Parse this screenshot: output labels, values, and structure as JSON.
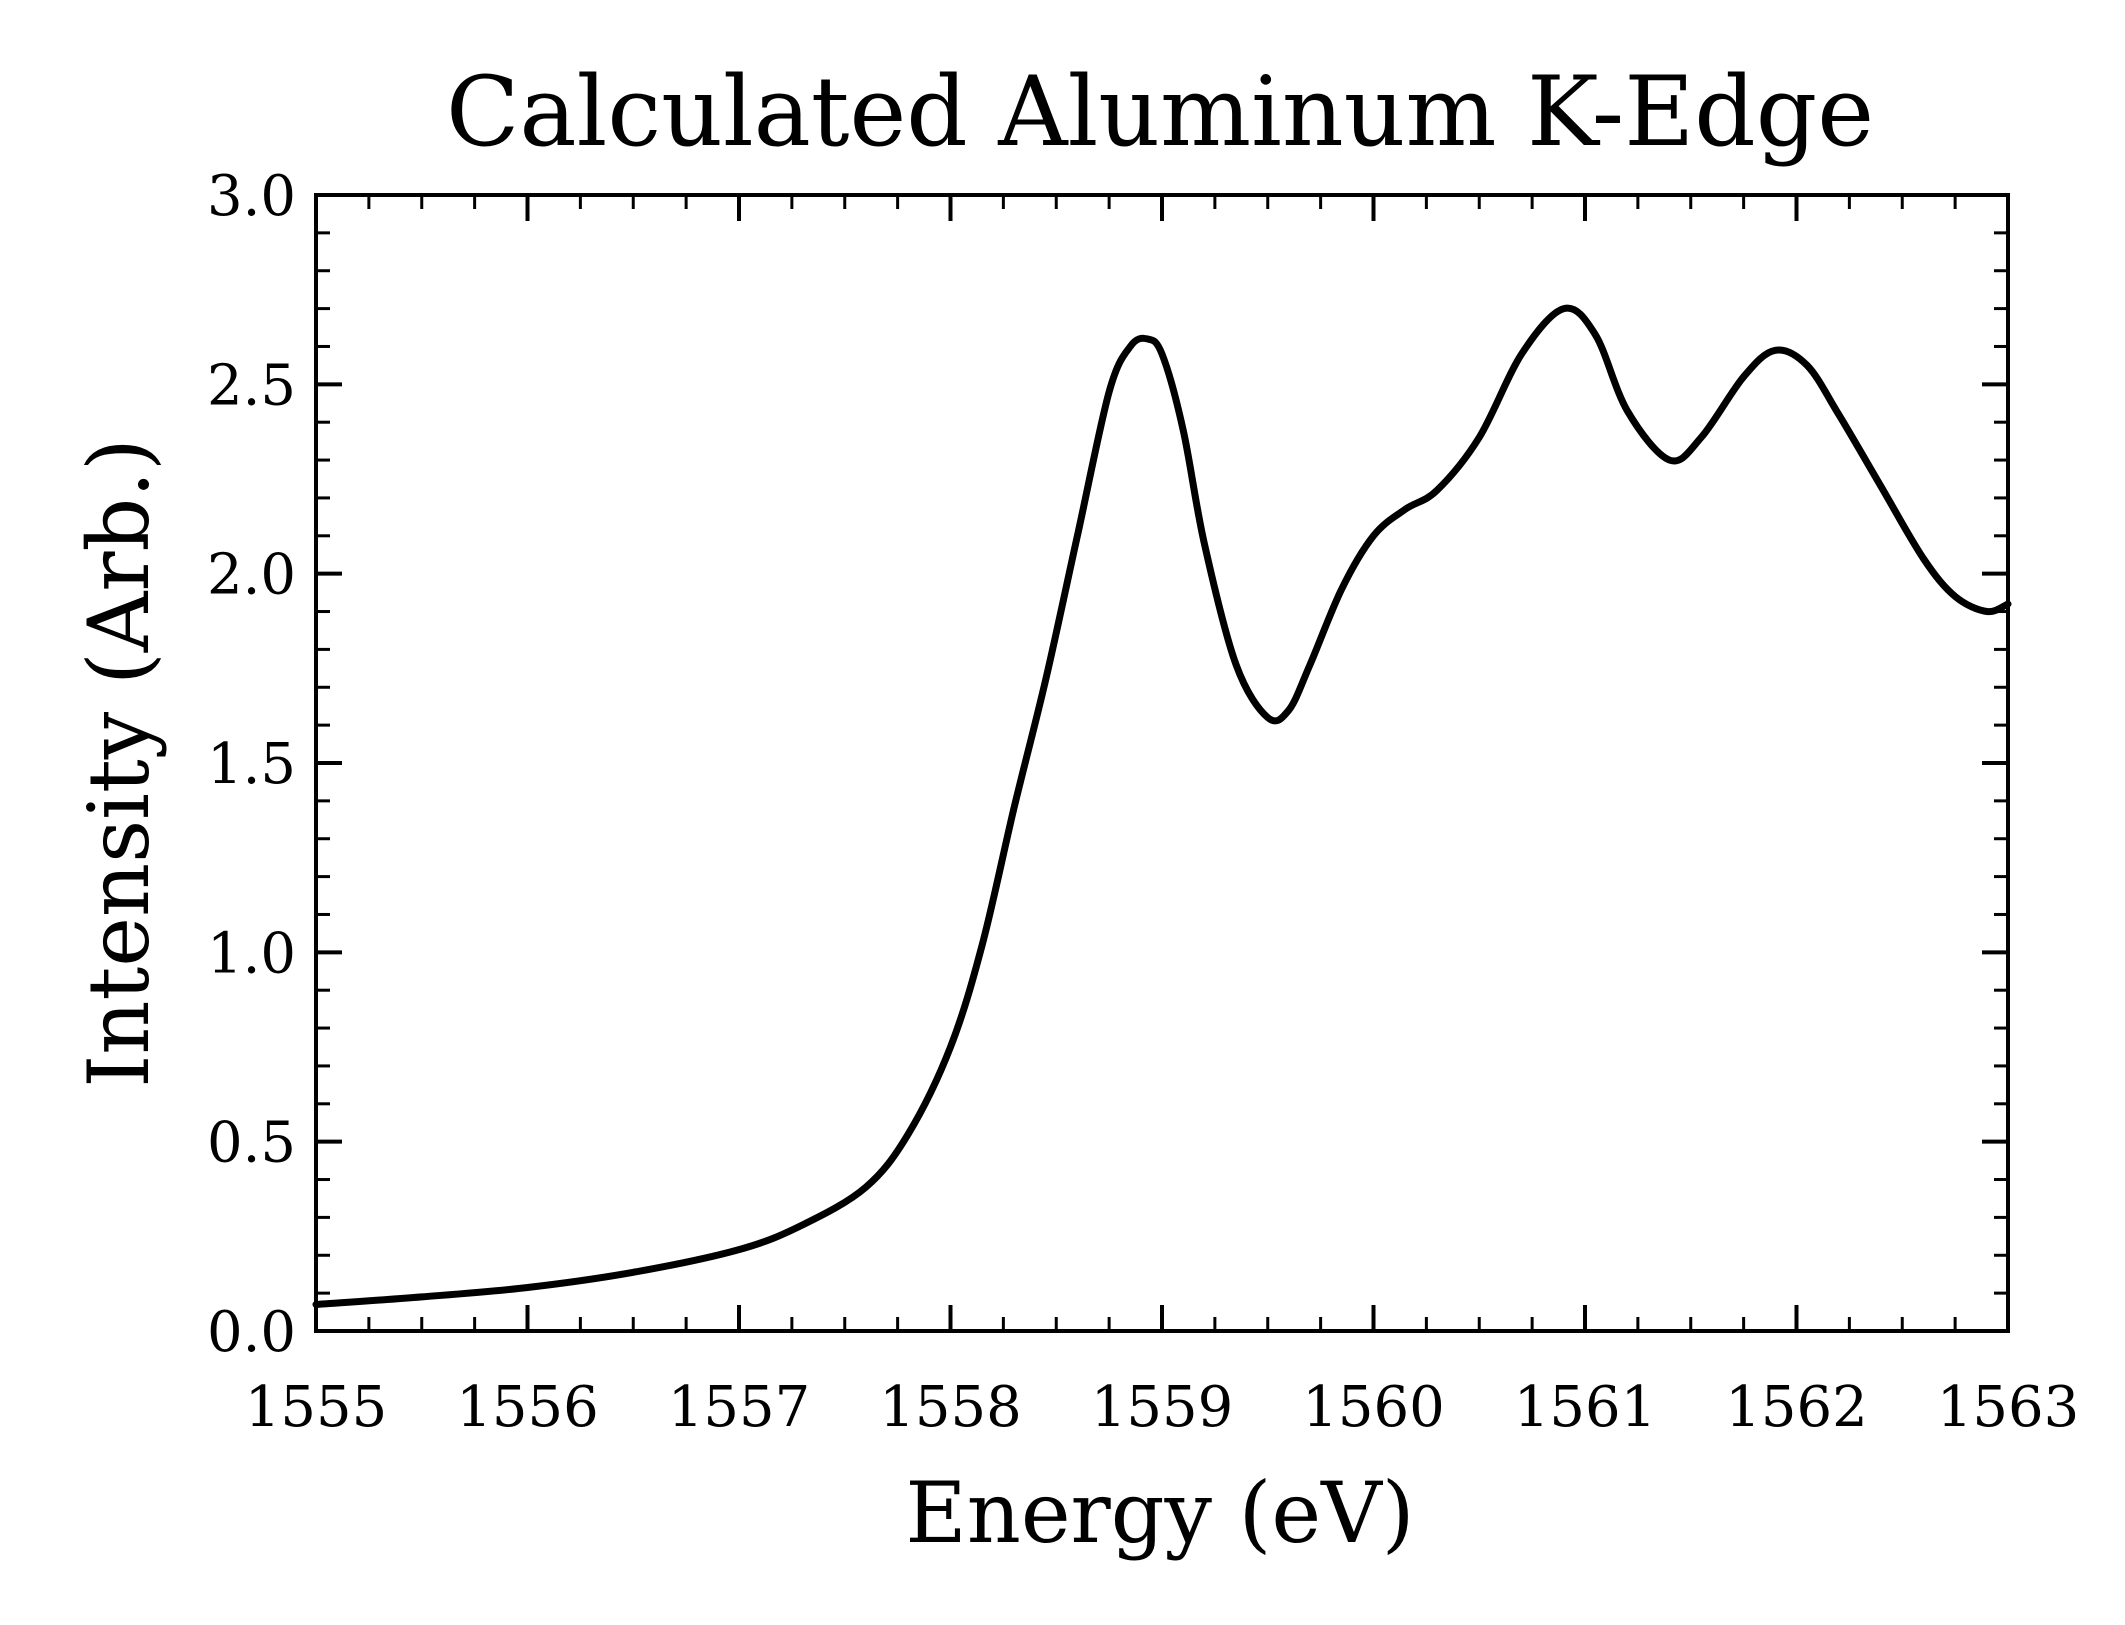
{
  "chart_data": {
    "type": "line",
    "title": "Calculated Aluminum K-Edge",
    "xlabel": "Energy (eV)",
    "ylabel": "Intensity (Arb.)",
    "xlim": [
      1555,
      1563
    ],
    "ylim": [
      0.0,
      3.0
    ],
    "x_ticks": [
      1555,
      1556,
      1557,
      1558,
      1559,
      1560,
      1561,
      1562,
      1563
    ],
    "x_tick_labels": [
      "1555",
      "1556",
      "1557",
      "1558",
      "1559",
      "1560",
      "1561",
      "1562",
      "1563"
    ],
    "x_minor_step": 0.25,
    "y_ticks": [
      0.0,
      0.5,
      1.0,
      1.5,
      2.0,
      2.5,
      3.0
    ],
    "y_tick_labels": [
      "0.0",
      "0.5",
      "1.0",
      "1.5",
      "2.0",
      "2.5",
      "3.0"
    ],
    "y_minor_step": 0.1,
    "grid": false,
    "line_color": "#000000",
    "series": [
      {
        "x": [
          1555.0,
          1555.5,
          1556.0,
          1556.5,
          1557.0,
          1557.3,
          1557.6,
          1557.8,
          1558.0,
          1558.15,
          1558.3,
          1558.45,
          1558.6,
          1558.75,
          1558.85,
          1558.93,
          1559.0,
          1559.1,
          1559.2,
          1559.35,
          1559.5,
          1559.6,
          1559.7,
          1559.85,
          1560.0,
          1560.15,
          1560.3,
          1560.5,
          1560.7,
          1560.9,
          1561.05,
          1561.2,
          1561.4,
          1561.55,
          1561.75,
          1561.9,
          1562.05,
          1562.2,
          1562.4,
          1562.6,
          1562.75,
          1562.9,
          1563.0
        ],
        "y": [
          0.07,
          0.09,
          0.115,
          0.155,
          0.215,
          0.28,
          0.38,
          0.52,
          0.75,
          1.02,
          1.38,
          1.72,
          2.1,
          2.48,
          2.6,
          2.62,
          2.58,
          2.38,
          2.08,
          1.76,
          1.62,
          1.64,
          1.76,
          1.96,
          2.1,
          2.17,
          2.22,
          2.36,
          2.58,
          2.7,
          2.63,
          2.43,
          2.3,
          2.36,
          2.52,
          2.59,
          2.55,
          2.42,
          2.23,
          2.04,
          1.94,
          1.9,
          1.92
        ]
      }
    ]
  }
}
